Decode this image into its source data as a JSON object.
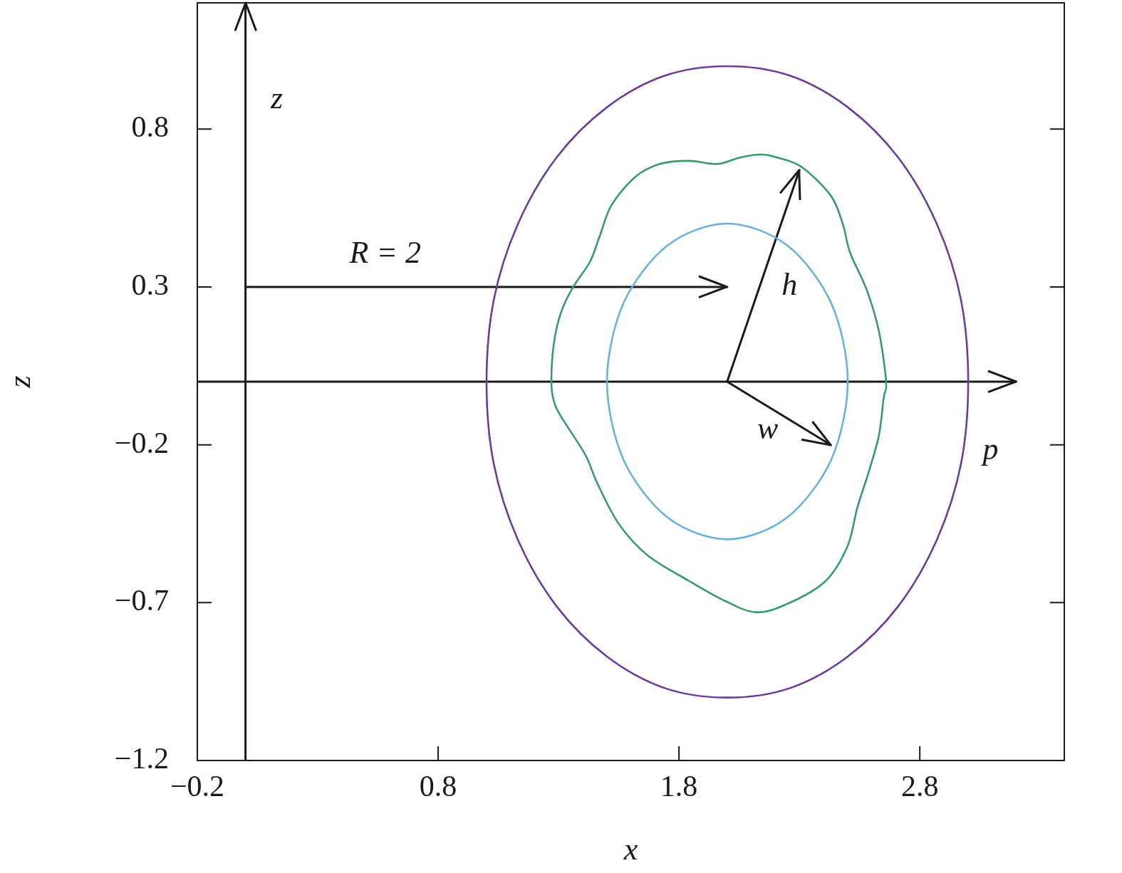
{
  "chart_data": {
    "type": "line",
    "xlabel": "x",
    "ylabel": "z",
    "xlim": [
      -0.2,
      3.4
    ],
    "ylim": [
      -1.2,
      1.2
    ],
    "xticks": [
      {
        "value": -0.2,
        "label": "−0.2"
      },
      0.8,
      1.8,
      2.8
    ],
    "yticks": [
      {
        "value": -1.2,
        "label": "−1.2"
      },
      {
        "value": -0.7,
        "label": "−0.7"
      },
      {
        "value": -0.2,
        "label": "−0.2"
      },
      0.3,
      0.8
    ],
    "grid": false,
    "legend": false,
    "marker": "none",
    "line_style": "solid",
    "series": [
      {
        "color": "#1a1a1a",
        "x": [
          -0.2,
          3.2
        ],
        "values": [
          0,
          0
        ]
      },
      {
        "color": "#1a1a1a",
        "x": [
          0,
          0
        ],
        "values": [
          -1.2,
          1.2
        ]
      },
      {
        "color": "#1a1a1a",
        "x": [
          0,
          2
        ],
        "values": [
          0.3,
          0.3
        ]
      },
      {
        "color": "#1a1a1a",
        "x": [
          2,
          2.3
        ],
        "values": [
          0,
          0.67
        ]
      },
      {
        "color": "#1a1a1a",
        "x": [
          2,
          2.43
        ],
        "values": [
          0,
          -0.2
        ]
      }
    ],
    "annotations": [
      "p",
      "z",
      "R = 2",
      "h",
      "w"
    ]
  }
}
